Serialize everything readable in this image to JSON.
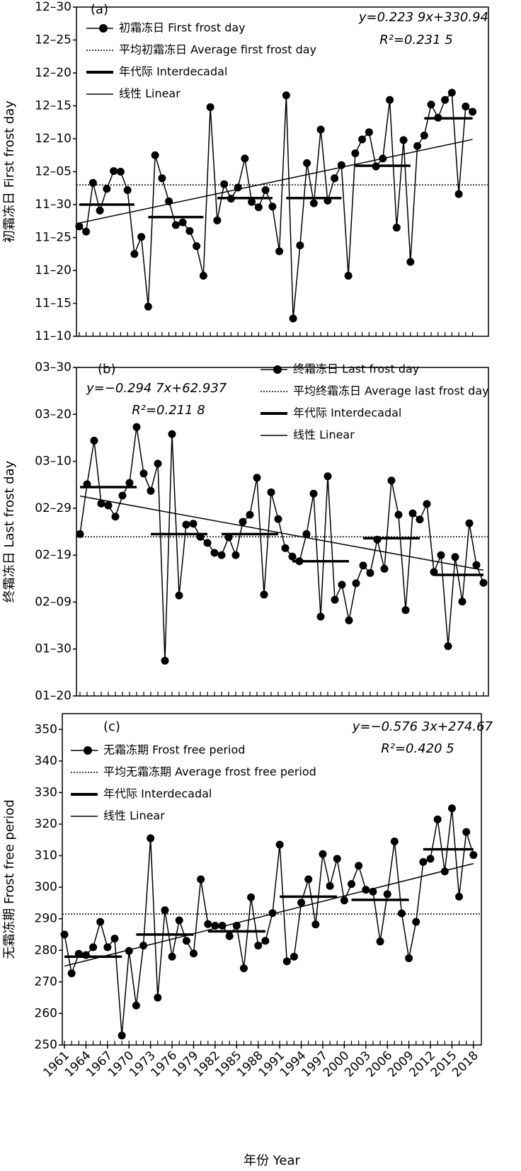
{
  "chart_data": [
    {
      "type": "line",
      "panel_label": "(a)",
      "equation": "y=0.223 9x+330.94",
      "r_squared": "R²=0.231 5",
      "y_label": "初霜冻日 First frost day",
      "x": [
        1961,
        1962,
        1963,
        1964,
        1965,
        1966,
        1967,
        1968,
        1969,
        1970,
        1971,
        1972,
        1973,
        1974,
        1975,
        1976,
        1977,
        1978,
        1979,
        1980,
        1981,
        1982,
        1983,
        1984,
        1985,
        1986,
        1987,
        1988,
        1989,
        1990,
        1991,
        1992,
        1993,
        1994,
        1995,
        1996,
        1997,
        1998,
        1999,
        2000,
        2001,
        2002,
        2003,
        2004,
        2005,
        2006,
        2007,
        2008,
        2009,
        2010,
        2011,
        2012,
        2013,
        2014,
        2015,
        2016,
        2017,
        2018
      ],
      "xlim": [
        1960.6,
        2020.3
      ],
      "ylim": [
        314,
        364
      ],
      "yticks": [
        {
          "value": 314,
          "label": "11–10"
        },
        {
          "value": 319,
          "label": "11–15"
        },
        {
          "value": 324,
          "label": "11–20"
        },
        {
          "value": 329,
          "label": "11–25"
        },
        {
          "value": 334,
          "label": "11–30"
        },
        {
          "value": 339,
          "label": "12–05"
        },
        {
          "value": 344,
          "label": "12–10"
        },
        {
          "value": 349,
          "label": "12–15"
        },
        {
          "value": 354,
          "label": "12–20"
        },
        {
          "value": 359,
          "label": "12–25"
        },
        {
          "value": 364,
          "label": "12–30"
        }
      ],
      "series": [
        {
          "name": "初霜冻日 First frost day",
          "style": "line-marker",
          "color": "#000000",
          "values": [
            330.7,
            329.9,
            337.3,
            333.1,
            336.4,
            339.1,
            339,
            336.2,
            326.5,
            329.1,
            318.5,
            341.5,
            338,
            334.5,
            330.9,
            331.3,
            330,
            327.7,
            323.2,
            348.8,
            331.6,
            337.1,
            334.9,
            336.6,
            341,
            334.4,
            333.6,
            336.2,
            333.7,
            326.9,
            350.6,
            316.7,
            327.8,
            340.3,
            334.2,
            345.4,
            334.6,
            338,
            340,
            323.2,
            341.8,
            343.9,
            345,
            339.8,
            341,
            349.9,
            330.5,
            343.8,
            325.3,
            342.9,
            344.5,
            349.2,
            347.2,
            349.9,
            351,
            335.6,
            348.9,
            348.1
          ]
        },
        {
          "name": "平均初霜冻日 Average first frost day",
          "style": "dotted",
          "color": "#000000",
          "value": 337
        },
        {
          "name": "年代际 Interdecadal",
          "style": "segments",
          "color": "#000000",
          "segments": [
            {
              "x": [
                1961,
                1969
              ],
              "value": 334
            },
            {
              "x": [
                1971,
                1979
              ],
              "value": 332.1
            },
            {
              "x": [
                1981,
                1989
              ],
              "value": 335
            },
            {
              "x": [
                1991,
                1999
              ],
              "value": 335
            },
            {
              "x": [
                2001,
                2009
              ],
              "value": 339.9
            },
            {
              "x": [
                2011,
                2018
              ],
              "value": 347.1
            }
          ]
        },
        {
          "name": "线性 Linear",
          "style": "linear",
          "color": "#000000",
          "x": [
            1961,
            2018
          ],
          "values": [
            331.2,
            343.9
          ]
        }
      ]
    },
    {
      "type": "line",
      "panel_label": "(b)",
      "equation": "y=−0.294 7x+62.937",
      "r_squared": "R²=0.211 8",
      "y_label": "终霜冻日 Last frost day",
      "x": [
        1961,
        1962,
        1963,
        1964,
        1965,
        1966,
        1967,
        1968,
        1969,
        1970,
        1971,
        1972,
        1973,
        1974,
        1975,
        1976,
        1977,
        1978,
        1979,
        1980,
        1981,
        1982,
        1983,
        1984,
        1985,
        1986,
        1987,
        1988,
        1989,
        1990,
        1991,
        1992,
        1993,
        1994,
        1995,
        1996,
        1997,
        1998,
        1999,
        2000,
        2001,
        2002,
        2003,
        2004,
        2005,
        2006,
        2007,
        2008,
        2009,
        2010,
        2011,
        2012,
        2013,
        2014,
        2015,
        2016,
        2017,
        2018
      ],
      "xlim": [
        1960.5,
        2018.7
      ],
      "ylim": [
        20,
        90
      ],
      "yticks": [
        {
          "value": 20,
          "label": "01–20"
        },
        {
          "value": 30,
          "label": "01–30"
        },
        {
          "value": 40,
          "label": "02–09"
        },
        {
          "value": 50,
          "label": "02–19"
        },
        {
          "value": 60,
          "label": "02–29"
        },
        {
          "value": 70,
          "label": "03–10"
        },
        {
          "value": 80,
          "label": "03–20"
        },
        {
          "value": 90,
          "label": "03–30"
        }
      ],
      "series": [
        {
          "name": "终霜冻日 Last frost day",
          "style": "line-marker",
          "color": "#000000",
          "values": [
            54.5,
            65.1,
            74.4,
            61,
            60.6,
            58.2,
            62.7,
            65.4,
            77.3,
            67.4,
            63.7,
            69.5,
            27.5,
            75.8,
            41.4,
            56.5,
            56.7,
            53.9,
            52.6,
            50.5,
            50,
            53.8,
            50,
            57.1,
            58.6,
            66.5,
            41.6,
            63.4,
            57.7,
            51.5,
            49.7,
            48.7,
            54.5,
            63.1,
            36.9,
            66.8,
            40.5,
            43.7,
            36.1,
            44,
            47.8,
            46.2,
            53.3,
            47.1,
            65.9,
            58.6,
            38.3,
            58.9,
            57.6,
            60.9,
            46.4,
            50,
            30.6,
            49.6,
            40.1,
            56.8,
            47.9,
            44.1
          ]
        },
        {
          "name": "平均终霜冻日 Average last frost day",
          "style": "dotted",
          "color": "#000000",
          "value": 53.9
        },
        {
          "name": "年代际 Interdecadal",
          "style": "segments",
          "color": "#000000",
          "segments": [
            {
              "x": [
                1961,
                1969
              ],
              "value": 64.5
            },
            {
              "x": [
                1971,
                1979
              ],
              "value": 54.5
            },
            {
              "x": [
                1981,
                1989
              ],
              "value": 54.5
            },
            {
              "x": [
                1991,
                1999
              ],
              "value": 48.7
            },
            {
              "x": [
                2001,
                2009
              ],
              "value": 53.6
            },
            {
              "x": [
                2011,
                2018
              ],
              "value": 45.8
            }
          ]
        },
        {
          "name": "线性 Linear",
          "style": "linear",
          "color": "#000000",
          "x": [
            1961,
            2018
          ],
          "values": [
            62.6,
            46.8
          ]
        }
      ]
    },
    {
      "type": "line",
      "panel_label": "(c)",
      "equation": "y=−0.576 3x+274.67",
      "r_squared": "R²=0.420 5",
      "y_label": "无霜冻期 Frost free period",
      "x_label": "年份 Year",
      "x": [
        1961,
        1962,
        1963,
        1964,
        1965,
        1966,
        1967,
        1968,
        1969,
        1970,
        1971,
        1972,
        1973,
        1974,
        1975,
        1976,
        1977,
        1978,
        1979,
        1980,
        1981,
        1982,
        1983,
        1984,
        1985,
        1986,
        1987,
        1988,
        1989,
        1990,
        1991,
        1992,
        1993,
        1994,
        1995,
        1996,
        1997,
        1998,
        1999,
        2000,
        2001,
        2002,
        2003,
        2004,
        2005,
        2006,
        2007,
        2008,
        2009,
        2010,
        2011,
        2012,
        2013,
        2014,
        2015,
        2016,
        2017,
        2018
      ],
      "xlim": [
        1960.7,
        2019.1
      ],
      "ylim": [
        250,
        355
      ],
      "xticks": [
        1961,
        1964,
        1967,
        1970,
        1973,
        1976,
        1979,
        1982,
        1985,
        1988,
        1991,
        1994,
        1997,
        2000,
        2003,
        2006,
        2009,
        2012,
        2015,
        2018
      ],
      "yticks": [
        250,
        260,
        270,
        280,
        290,
        300,
        310,
        320,
        330,
        340,
        350
      ],
      "series": [
        {
          "name": "无霜冻期 Frost free period",
          "style": "line-marker",
          "color": "#000000",
          "values": [
            285,
            272.7,
            278.9,
            278.5,
            281,
            289,
            281,
            283.7,
            253,
            279.8,
            262.5,
            281.5,
            315.5,
            265,
            292.7,
            278,
            289.5,
            283,
            279,
            302.5,
            288.3,
            287.8,
            287.8,
            284.5,
            287.8,
            274.3,
            296.8,
            281.5,
            283,
            291.8,
            313.5,
            276.5,
            278,
            295.1,
            302.5,
            288.2,
            310.5,
            300.4,
            309,
            295.8,
            301,
            306.8,
            299.2,
            298.6,
            282.8,
            297.8,
            314.5,
            291.7,
            277.5,
            289,
            308,
            309,
            321.5,
            305,
            325,
            297,
            317.5,
            310.2
          ]
        },
        {
          "name": "平均无霜冻期  Average frost free period",
          "style": "dotted",
          "color": "#000000",
          "value": 291.5
        },
        {
          "name": "年代际 Interdecadal",
          "style": "segments",
          "color": "#000000",
          "segments": [
            {
              "x": [
                1961,
                1969
              ],
              "value": 278
            },
            {
              "x": [
                1971,
                1979
              ],
              "value": 285
            },
            {
              "x": [
                1981,
                1989
              ],
              "value": 286
            },
            {
              "x": [
                1991,
                1999
              ],
              "value": 297
            },
            {
              "x": [
                2001,
                2009
              ],
              "value": 296
            },
            {
              "x": [
                2011,
                2018
              ],
              "value": 312
            }
          ]
        },
        {
          "name": "线性 Linear",
          "style": "linear",
          "color": "#000000",
          "x": [
            1961,
            2018
          ],
          "values": [
            275,
            307.5
          ]
        }
      ]
    }
  ]
}
